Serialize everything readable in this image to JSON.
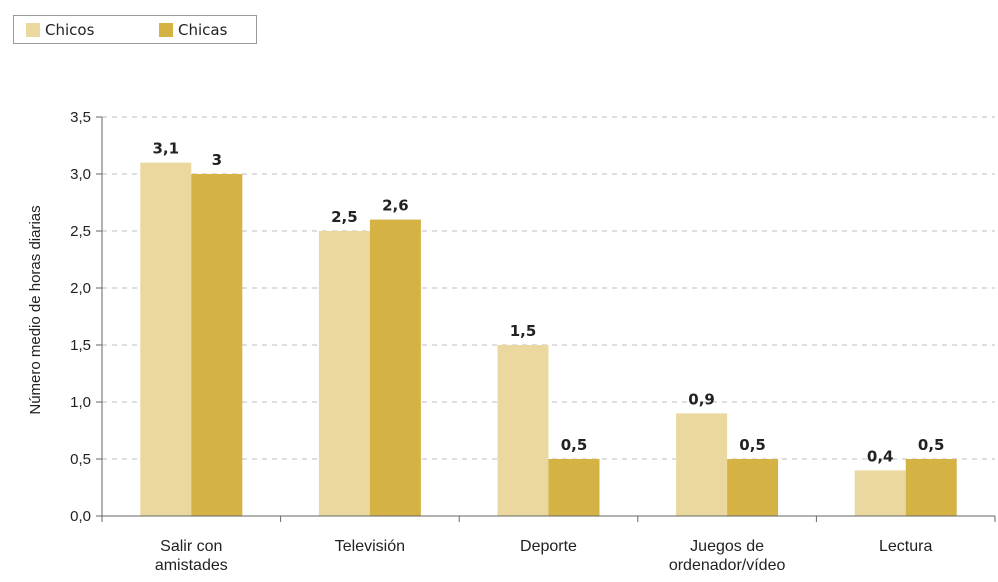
{
  "chart_data": {
    "type": "bar",
    "categories": [
      [
        "Salir con",
        "amistades"
      ],
      [
        "Televisión"
      ],
      [
        "Deporte"
      ],
      [
        "Juegos de",
        "ordenador/vídeo"
      ],
      [
        "Lectura"
      ]
    ],
    "series": [
      {
        "name": "Chicos",
        "color": "#ead89f",
        "values": [
          3.1,
          2.5,
          1.5,
          0.9,
          0.4
        ],
        "labels": [
          "3,1",
          "2,5",
          "1,5",
          "0,9",
          "0,4"
        ]
      },
      {
        "name": "Chicas",
        "color": "#d4b244",
        "values": [
          3.0,
          2.6,
          0.5,
          0.5,
          0.5
        ],
        "labels": [
          "3",
          "2,6",
          "0,5",
          "0,5",
          "0,5"
        ]
      }
    ],
    "ylabel": "Número medio de horas diarias",
    "ylim": [
      0,
      3.5
    ],
    "yticks": [
      "0,0",
      "0,5",
      "1,0",
      "1,5",
      "2,0",
      "2,5",
      "3,0",
      "3,5"
    ],
    "grid": "dashed horizontal",
    "legend": "top-left"
  }
}
